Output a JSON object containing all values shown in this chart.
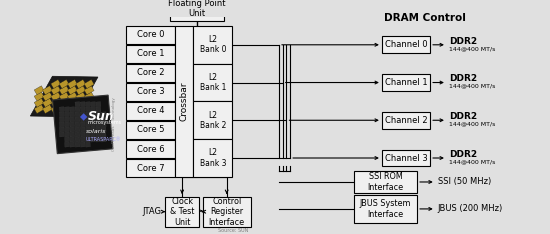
{
  "bg_color": "#e0e0e0",
  "cores": [
    "Core 0",
    "Core 1",
    "Core 2",
    "Core 3",
    "Core 4",
    "Core 5",
    "Core 6",
    "Core 7"
  ],
  "l2_bank_labels": [
    "L2\nBank 0",
    "L2\nBank 1",
    "L2\nBank 2",
    "L2\nBank 3"
  ],
  "channel_labels": [
    "Channel 0",
    "Channel 1",
    "Channel 2",
    "Channel 3"
  ],
  "crossbar_label": "Crossbar",
  "fpu_label": "Floating Point\nUnit",
  "dram_label": "DRAM Control",
  "ddr2_label": "DDR2",
  "ddr2_spec": "144@400 MT/s",
  "jbus_box": "JBUS System\nInterface",
  "ssi_box": "SSI ROM\nInterface",
  "jbus_out": "JBUS (200 MHz)",
  "ssi_out": "SSI (50 MHz)",
  "jtag_label": "JTAG",
  "clock_box": "Clock\n& Test\nUnit",
  "control_box": "Control\nRegister\nInterface",
  "source_text": "Source: SUN"
}
